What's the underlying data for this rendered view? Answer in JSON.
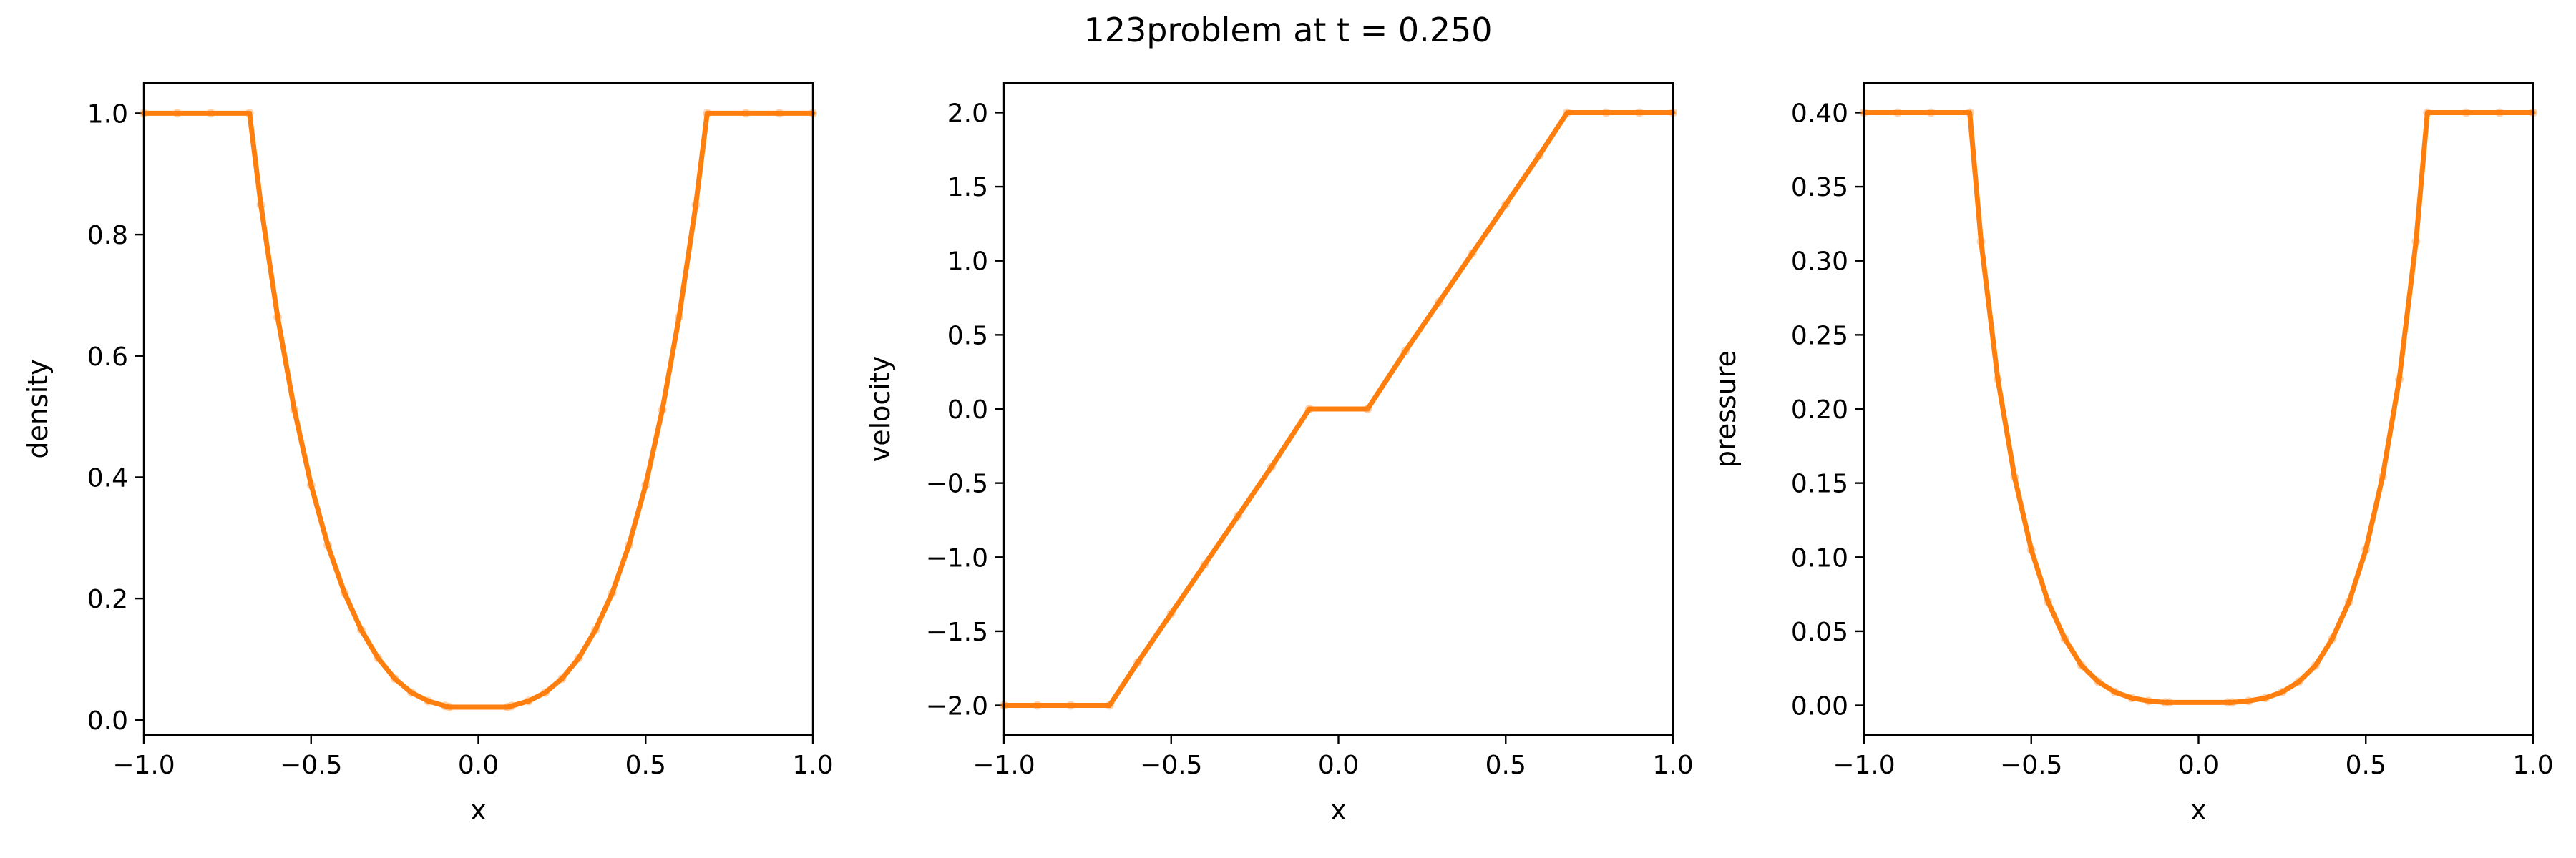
{
  "figure": {
    "title": "123problem at t = 0.250",
    "line_color": "#ff7f0e"
  },
  "chart_data": [
    {
      "type": "line",
      "xlabel": "x",
      "ylabel": "density",
      "xlim": [
        -1.0,
        1.0
      ],
      "ylim": [
        -0.025,
        1.05
      ],
      "xticks": [
        -1.0,
        -0.5,
        0.0,
        0.5,
        1.0
      ],
      "xtick_labels": [
        "−1.0",
        "−0.5",
        "0.0",
        "0.5",
        "1.0"
      ],
      "yticks": [
        0.0,
        0.2,
        0.4,
        0.6,
        0.8,
        1.0
      ],
      "ytick_labels": [
        "0.0",
        "0.2",
        "0.4",
        "0.6",
        "0.8",
        "1.0"
      ],
      "series": [
        {
          "x": [
            -1.0,
            -0.9,
            -0.8,
            -0.684,
            -0.65,
            -0.6,
            -0.55,
            -0.5,
            -0.45,
            -0.4,
            -0.35,
            -0.3,
            -0.25,
            -0.2,
            -0.15,
            -0.1,
            -0.087,
            0.087,
            0.1,
            0.15,
            0.2,
            0.25,
            0.3,
            0.35,
            0.4,
            0.45,
            0.5,
            0.55,
            0.6,
            0.65,
            0.684,
            0.8,
            0.9,
            1.0
          ],
          "y": [
            1.0,
            1.0,
            1.0,
            1.0,
            0.849,
            0.664,
            0.511,
            0.387,
            0.288,
            0.209,
            0.148,
            0.102,
            0.068,
            0.045,
            0.031,
            0.023,
            0.021,
            0.021,
            0.023,
            0.031,
            0.045,
            0.068,
            0.102,
            0.148,
            0.209,
            0.288,
            0.387,
            0.511,
            0.664,
            0.849,
            1.0,
            1.0,
            1.0,
            1.0
          ]
        }
      ]
    },
    {
      "type": "line",
      "xlabel": "x",
      "ylabel": "velocity",
      "xlim": [
        -1.0,
        1.0
      ],
      "ylim": [
        -2.2,
        2.2
      ],
      "xticks": [
        -1.0,
        -0.5,
        0.0,
        0.5,
        1.0
      ],
      "xtick_labels": [
        "−1.0",
        "−0.5",
        "0.0",
        "0.5",
        "1.0"
      ],
      "yticks": [
        -2.0,
        -1.5,
        -1.0,
        -0.5,
        0.0,
        0.5,
        1.0,
        1.5,
        2.0
      ],
      "ytick_labels": [
        "−2.0",
        "−1.5",
        "−1.0",
        "−0.5",
        "0.0",
        "0.5",
        "1.0",
        "1.5",
        "2.0"
      ],
      "series": [
        {
          "x": [
            -1.0,
            -0.9,
            -0.8,
            -0.684,
            -0.6,
            -0.5,
            -0.4,
            -0.3,
            -0.2,
            -0.087,
            0.087,
            0.2,
            0.3,
            0.4,
            0.5,
            0.6,
            0.684,
            0.8,
            0.9,
            1.0
          ],
          "y": [
            -2.0,
            -2.0,
            -2.0,
            -2.0,
            -1.71,
            -1.38,
            -1.05,
            -0.72,
            -0.39,
            0.0,
            0.0,
            0.39,
            0.72,
            1.05,
            1.38,
            1.71,
            2.0,
            2.0,
            2.0,
            2.0
          ]
        }
      ]
    },
    {
      "type": "line",
      "xlabel": "x",
      "ylabel": "pressure",
      "xlim": [
        -1.0,
        1.0
      ],
      "ylim": [
        -0.02,
        0.42
      ],
      "xticks": [
        -1.0,
        -0.5,
        0.0,
        0.5,
        1.0
      ],
      "xtick_labels": [
        "−1.0",
        "−0.5",
        "0.0",
        "0.5",
        "1.0"
      ],
      "yticks": [
        0.0,
        0.05,
        0.1,
        0.15,
        0.2,
        0.25,
        0.3,
        0.35,
        0.4
      ],
      "ytick_labels": [
        "0.00",
        "0.05",
        "0.10",
        "0.15",
        "0.20",
        "0.25",
        "0.30",
        "0.35",
        "0.40"
      ],
      "series": [
        {
          "x": [
            -1.0,
            -0.9,
            -0.8,
            -0.684,
            -0.65,
            -0.6,
            -0.55,
            -0.5,
            -0.45,
            -0.4,
            -0.35,
            -0.3,
            -0.25,
            -0.2,
            -0.15,
            -0.1,
            -0.087,
            0.087,
            0.1,
            0.15,
            0.2,
            0.25,
            0.3,
            0.35,
            0.4,
            0.45,
            0.5,
            0.55,
            0.6,
            0.65,
            0.684,
            0.8,
            0.9,
            1.0
          ],
          "y": [
            0.4,
            0.4,
            0.4,
            0.4,
            0.313,
            0.22,
            0.154,
            0.105,
            0.07,
            0.045,
            0.027,
            0.016,
            0.009,
            0.005,
            0.003,
            0.002,
            0.002,
            0.002,
            0.002,
            0.003,
            0.005,
            0.009,
            0.016,
            0.027,
            0.045,
            0.07,
            0.105,
            0.154,
            0.22,
            0.313,
            0.4,
            0.4,
            0.4,
            0.4
          ]
        }
      ]
    }
  ]
}
